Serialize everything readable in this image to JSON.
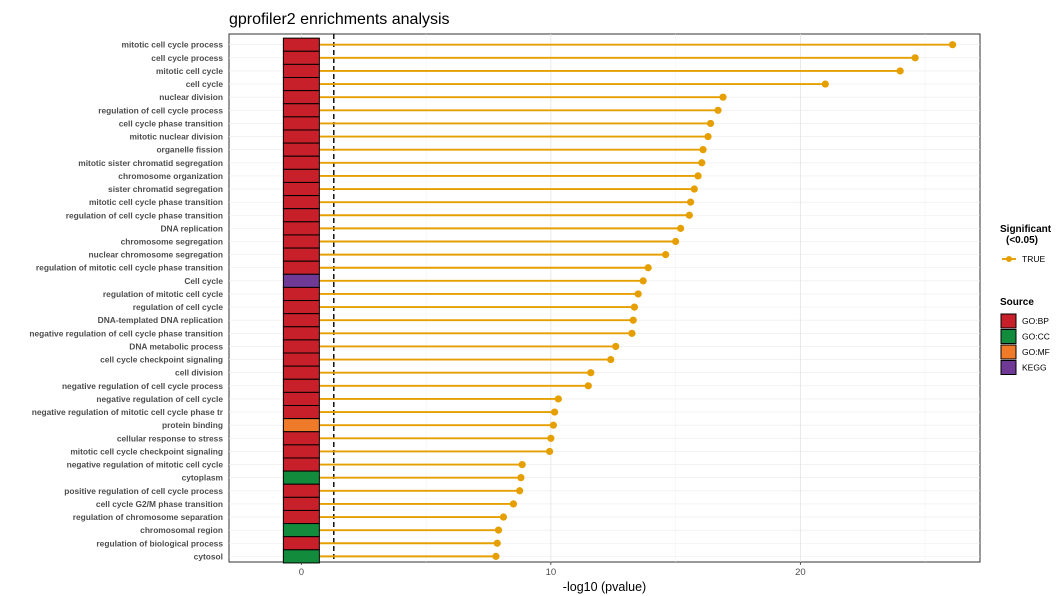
{
  "chart_data": {
    "type": "lollipop",
    "title": "gprofiler2 enrichments analysis",
    "xlabel": "-log10 (pvalue)",
    "ylabel": "",
    "xlim": [
      -2.9,
      27.2
    ],
    "xticks": [
      0,
      10,
      20
    ],
    "threshold_line": 1.3,
    "grid": true,
    "legend_position": "right",
    "colors": {
      "lollipop": "#E69F00",
      "GO:BP": "#C8202A",
      "GO:CC": "#128C3C",
      "GO:MF": "#EF7A2A",
      "KEGG": "#6F3A95"
    },
    "categories": [
      "mitotic cell cycle process",
      "cell cycle process",
      "mitotic cell cycle",
      "cell cycle",
      "nuclear division",
      "regulation of cell cycle process",
      "cell cycle phase transition",
      "mitotic nuclear division",
      "organelle fission",
      "mitotic sister chromatid segregation",
      "chromosome organization",
      "sister chromatid segregation",
      "mitotic cell cycle phase transition",
      "regulation of cell cycle phase transition",
      "DNA replication",
      "chromosome segregation",
      "nuclear chromosome segregation",
      "regulation of mitotic cell cycle phase transition",
      "Cell cycle",
      "regulation of mitotic cell cycle",
      "regulation of cell cycle",
      "DNA-templated DNA replication",
      "negative regulation of cell cycle phase transition",
      "DNA metabolic process",
      "cell cycle checkpoint signaling",
      "cell division",
      "negative regulation of cell cycle process",
      "negative regulation of cell cycle",
      "negative regulation of mitotic cell cycle phase tr",
      "protein binding",
      "cellular response to stress",
      "mitotic cell cycle checkpoint signaling",
      "negative regulation of mitotic cell cycle",
      "cytoplasm",
      "positive regulation of cell cycle process",
      "cell cycle G2/M phase transition",
      "regulation of chromosome separation",
      "chromosomal region",
      "regulation of biological process",
      "cytosol"
    ],
    "values": [
      26.1,
      24.6,
      24.0,
      21.0,
      16.9,
      16.7,
      16.4,
      16.3,
      16.1,
      16.05,
      15.9,
      15.75,
      15.6,
      15.55,
      15.2,
      15.0,
      14.6,
      13.9,
      13.7,
      13.5,
      13.35,
      13.3,
      13.25,
      12.6,
      12.4,
      11.6,
      11.5,
      10.3,
      10.15,
      10.1,
      10.0,
      9.95,
      8.85,
      8.8,
      8.75,
      8.5,
      8.1,
      7.9,
      7.85,
      7.8
    ],
    "sources": [
      "GO:BP",
      "GO:BP",
      "GO:BP",
      "GO:BP",
      "GO:BP",
      "GO:BP",
      "GO:BP",
      "GO:BP",
      "GO:BP",
      "GO:BP",
      "GO:BP",
      "GO:BP",
      "GO:BP",
      "GO:BP",
      "GO:BP",
      "GO:BP",
      "GO:BP",
      "GO:BP",
      "KEGG",
      "GO:BP",
      "GO:BP",
      "GO:BP",
      "GO:BP",
      "GO:BP",
      "GO:BP",
      "GO:BP",
      "GO:BP",
      "GO:BP",
      "GO:BP",
      "GO:MF",
      "GO:BP",
      "GO:BP",
      "GO:BP",
      "GO:CC",
      "GO:BP",
      "GO:BP",
      "GO:BP",
      "GO:CC",
      "GO:BP",
      "GO:CC"
    ],
    "legend": {
      "significant_title": "Significant\n(<0.05)",
      "significant_entries": [
        "TRUE"
      ],
      "source_title": "Source",
      "source_entries": [
        "GO:BP",
        "GO:CC",
        "GO:MF",
        "KEGG"
      ]
    }
  }
}
